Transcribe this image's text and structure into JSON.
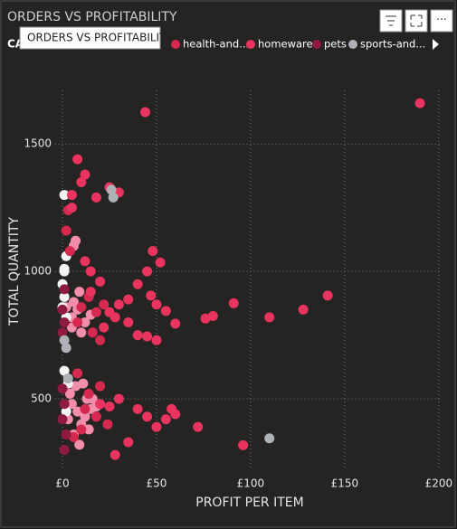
{
  "chart_data": {
    "type": "scatter",
    "title": "ORDERS VS PROFITABILITY",
    "tooltip": "ORDERS VS PROFITABILITY",
    "legend_title": "CA",
    "x_label": "PROFIT PER ITEM",
    "y_label": "TOTAL QUANTITY",
    "xlim": [
      -4,
      202
    ],
    "ylim": [
      220,
      1710
    ],
    "xticks": [
      {
        "value": 0,
        "label": "£0"
      },
      {
        "value": 50,
        "label": "£50"
      },
      {
        "value": 100,
        "label": "£100"
      },
      {
        "value": 150,
        "label": "£150"
      },
      {
        "value": 200,
        "label": "£200"
      }
    ],
    "yticks": [
      500,
      1000,
      1500
    ],
    "grid": true,
    "series": [
      {
        "name": null,
        "color": "#f28eab",
        "x": [
          5,
          8,
          12,
          10,
          15,
          6,
          9,
          5,
          8,
          12,
          10,
          15,
          6,
          9,
          13,
          4,
          7,
          11,
          3,
          14,
          16,
          5,
          2,
          18,
          7,
          6
        ],
        "values": [
          820,
          850,
          800,
          760,
          830,
          880,
          920,
          480,
          450,
          430,
          400,
          460,
          360,
          320,
          500,
          520,
          550,
          560,
          420,
          380,
          500,
          780,
          860,
          470,
          1120,
          1100
        ]
      },
      {
        "name": null,
        "color": "#f4f4f4",
        "x": [
          1,
          2,
          1,
          0,
          1,
          0,
          2,
          1,
          3,
          1,
          2
        ],
        "values": [
          1300,
          1060,
          1000,
          950,
          900,
          860,
          820,
          1010,
          560,
          610,
          450
        ]
      },
      {
        "name": "health-and...",
        "color": "#d6294f",
        "x": [
          3,
          2,
          4,
          10,
          14,
          18,
          22,
          8,
          16,
          20,
          12,
          18,
          24,
          10,
          6,
          14,
          20,
          8
        ],
        "values": [
          1240,
          1160,
          1080,
          860,
          900,
          840,
          870,
          800,
          760,
          730,
          460,
          430,
          400,
          380,
          350,
          520,
          550,
          600
        ]
      },
      {
        "name": "homeware",
        "color": "#e8345e",
        "x": [
          190,
          44,
          141,
          128,
          110,
          91,
          80,
          76,
          60,
          55,
          50,
          47,
          52,
          48,
          45,
          40,
          35,
          30,
          25,
          20,
          15,
          10,
          8,
          12,
          5,
          30,
          25,
          18,
          5,
          40,
          45,
          50,
          35,
          28,
          22,
          60,
          55,
          50,
          45,
          40,
          30,
          25,
          20,
          35,
          28,
          96,
          72,
          58,
          12,
          15
        ],
        "values": [
          1660,
          1625,
          905,
          850,
          820,
          875,
          825,
          815,
          795,
          845,
          870,
          905,
          1035,
          1080,
          1000,
          950,
          890,
          870,
          840,
          960,
          1000,
          1350,
          1440,
          1380,
          1300,
          1310,
          1330,
          1290,
          1250,
          750,
          745,
          730,
          800,
          820,
          780,
          440,
          420,
          390,
          430,
          460,
          500,
          470,
          480,
          330,
          280,
          318,
          390,
          460,
          1040,
          920
        ]
      },
      {
        "name": "pets",
        "color": "#8f1c40",
        "x": [
          0,
          1,
          0,
          1,
          0,
          1,
          2,
          0,
          1
        ],
        "values": [
          850,
          800,
          760,
          480,
          420,
          300,
          360,
          540,
          930
        ]
      },
      {
        "name": "sports-and...",
        "color": "#aeb1b6",
        "x": [
          110,
          26,
          27,
          2,
          1,
          3
        ],
        "values": [
          345,
          1320,
          1290,
          700,
          730,
          580
        ]
      }
    ]
  }
}
